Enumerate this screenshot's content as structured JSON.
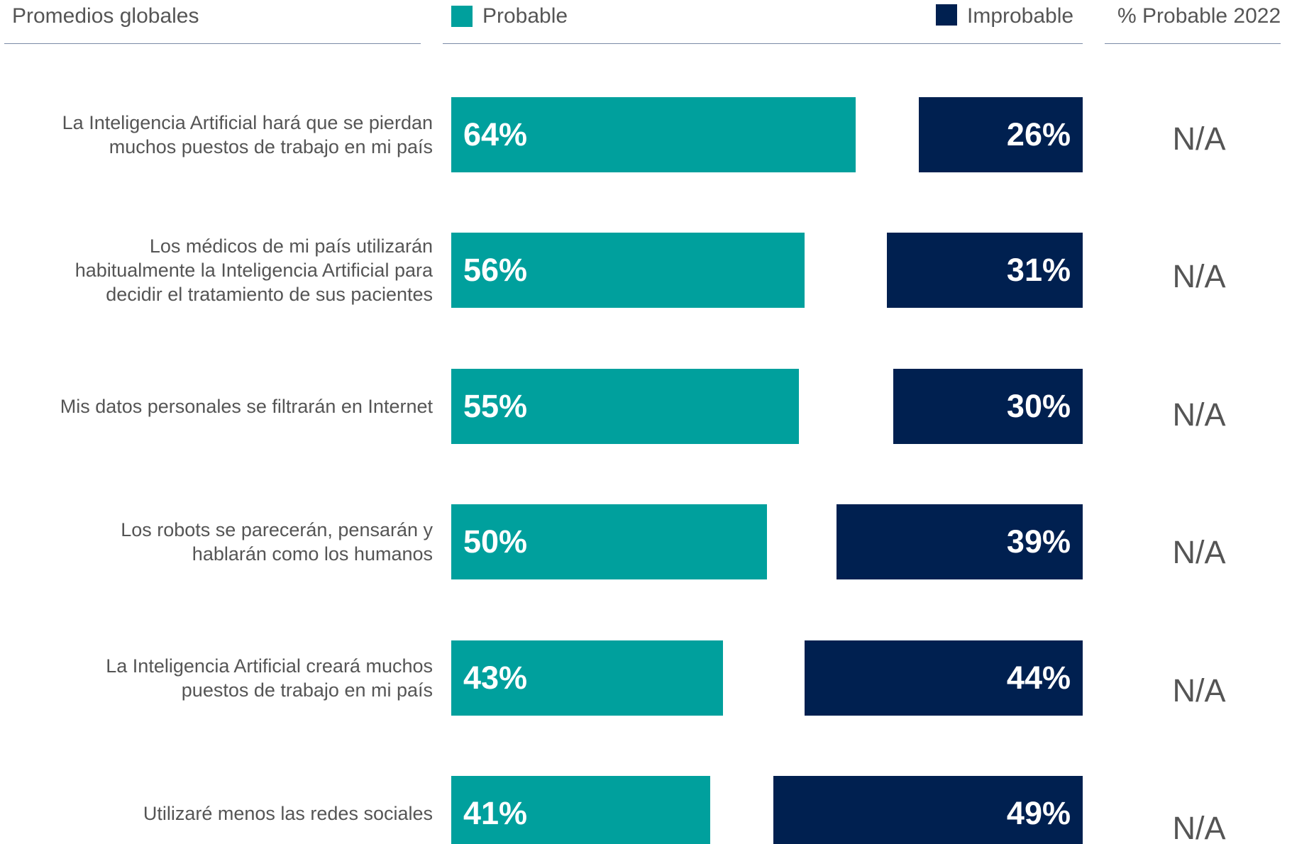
{
  "chart_data": {
    "type": "diverging_bar",
    "title": "Promedios globales",
    "categories": [
      "La Inteligencia Artificial hará que se pierdan\nmuchos puestos de trabajo en mi país",
      "Los médicos de mi país utilizarán\nhabitualmente la Inteligencia Artificial para\ndecidir el tratamiento de sus pacientes",
      "Mis datos personales se filtrarán en Internet",
      "Los robots se parecerán, pensarán y\nhablarán como los humanos",
      "La Inteligencia Artificial creará muchos\npuestos de trabajo en mi país",
      "Utilizaré menos las redes sociales"
    ],
    "xlim": [
      0,
      100
    ],
    "series": [
      {
        "name": "Probable",
        "color": "#00a09d",
        "side": "left",
        "values": [
          64,
          56,
          55,
          50,
          43,
          41
        ],
        "value_labels": [
          "64%",
          "56%",
          "55%",
          "50%",
          "43%",
          "41%"
        ]
      },
      {
        "name": "Improbable",
        "color": "#002050",
        "side": "right",
        "values": [
          26,
          31,
          30,
          39,
          44,
          49
        ],
        "value_labels": [
          "26%",
          "31%",
          "30%",
          "39%",
          "44%",
          "49%"
        ]
      }
    ],
    "comparison": {
      "name": "% Probable 2022",
      "labels": [
        "N/A",
        "N/A",
        "N/A",
        "N/A",
        "N/A",
        "N/A"
      ]
    }
  }
}
